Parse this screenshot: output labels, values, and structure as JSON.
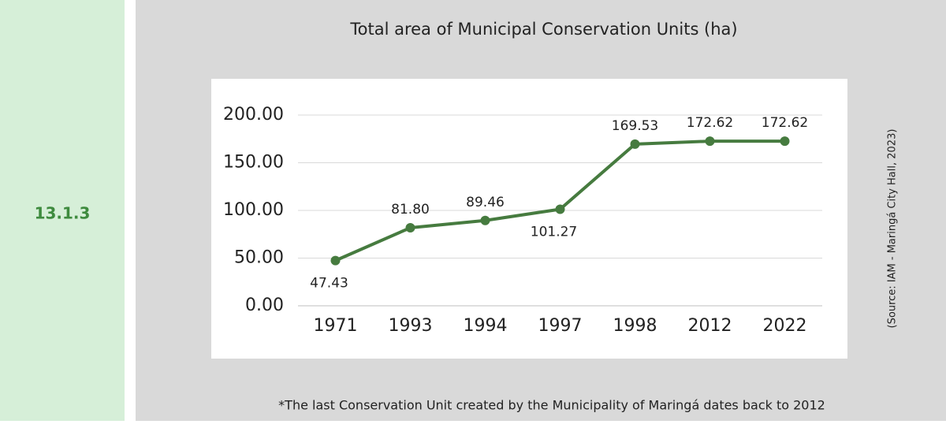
{
  "side_label": "13.1.3",
  "source": "(Source: IAM - Maringá City Hall, 2023)",
  "note": "*The last Conservation Unit created by the Municipality of Maringá dates back to 2012",
  "chart_data": {
    "type": "line",
    "title": "Total area of Municipal Conservation Units (ha)",
    "categories": [
      "1971",
      "1993",
      "1994",
      "1997",
      "1998",
      "2012",
      "2022"
    ],
    "values": [
      47.43,
      81.8,
      89.46,
      101.27,
      169.53,
      172.62,
      172.62
    ],
    "value_labels": [
      "47.43",
      "81.80",
      "89.46",
      "101.27",
      "169.53",
      "172.62",
      "172.62"
    ],
    "color": "#467b3f",
    "ylim": [
      0,
      200
    ],
    "yticks": [
      {
        "value": 0,
        "label": "0.00"
      },
      {
        "value": 50,
        "label": "50.00"
      },
      {
        "value": 100,
        "label": "100.00"
      },
      {
        "value": 150,
        "label": "150.00"
      },
      {
        "value": 200,
        "label": "200.00"
      }
    ],
    "grid": true
  }
}
